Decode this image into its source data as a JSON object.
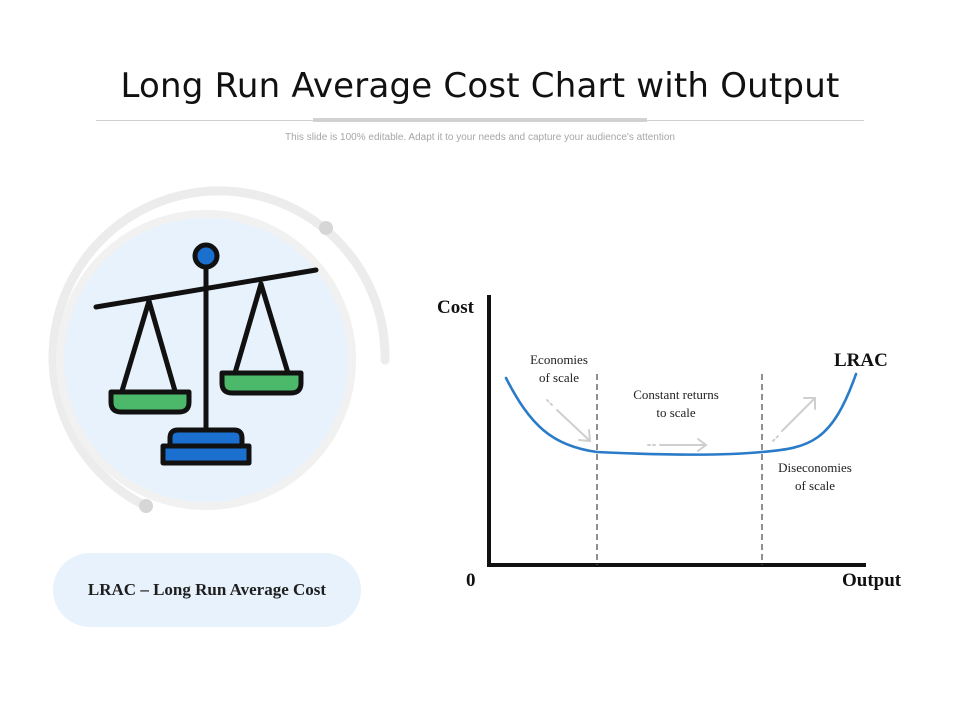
{
  "slide": {
    "title": "Long Run Average Cost Chart with Output",
    "subtitle": "This slide is 100% editable. Adapt it to your needs and capture your audience's attention"
  },
  "icon": {
    "name": "balance-scale-icon",
    "accent_blue": "#1a6fcf",
    "accent_green": "#4cb86a",
    "circle_fill": "#e8f2fc",
    "ring_color": "#ececec"
  },
  "definition": {
    "text": "LRAC – Long Run Average Cost"
  },
  "diagram": {
    "y_axis_label": "Cost",
    "x_axis_label": "Output",
    "origin_label": "0",
    "curve_label": "LRAC",
    "curve_color": "#2a7bc8",
    "regions": [
      {
        "line1": "Economies",
        "line2": "of scale"
      },
      {
        "line1": "Constant returns",
        "line2": "to scale"
      },
      {
        "line1": "Diseconomies",
        "line2": "of scale"
      }
    ]
  }
}
